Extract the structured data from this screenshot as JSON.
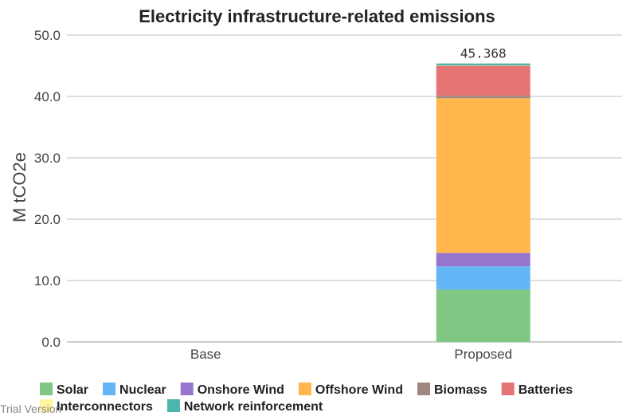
{
  "chart_data": {
    "type": "bar",
    "stacked": true,
    "title": "Electricity infrastructure-related emissions",
    "ylabel": "M tCO2e",
    "xlabel": "",
    "categories": [
      "Base",
      "Proposed"
    ],
    "ylim": [
      0,
      50
    ],
    "yticks": [
      "0.0",
      "10.0",
      "20.0",
      "30.0",
      "40.0",
      "50.0"
    ],
    "grid": true,
    "legend_position": "bottom",
    "series": [
      {
        "name": "Solar",
        "color": "#80c783",
        "values": [
          0,
          8.5
        ]
      },
      {
        "name": "Nuclear",
        "color": "#64b5f6",
        "values": [
          0,
          3.8
        ]
      },
      {
        "name": "Onshore Wind",
        "color": "#9575cd",
        "values": [
          0,
          2.2
        ]
      },
      {
        "name": "Offshore Wind",
        "color": "#ffb74d",
        "values": [
          0,
          25.2
        ]
      },
      {
        "name": "Biomass",
        "color": "#a1887f",
        "values": [
          0,
          0.4
        ]
      },
      {
        "name": "Batteries",
        "color": "#e57373",
        "values": [
          0,
          4.9
        ]
      },
      {
        "name": "Interconnectors",
        "color": "#fff59d",
        "values": [
          0,
          0.05
        ]
      },
      {
        "name": "Network reinforcement",
        "color": "#4db6ac",
        "values": [
          0,
          0.318
        ]
      }
    ],
    "totals": [
      "",
      "45.368"
    ]
  },
  "watermark": "Trial Version"
}
